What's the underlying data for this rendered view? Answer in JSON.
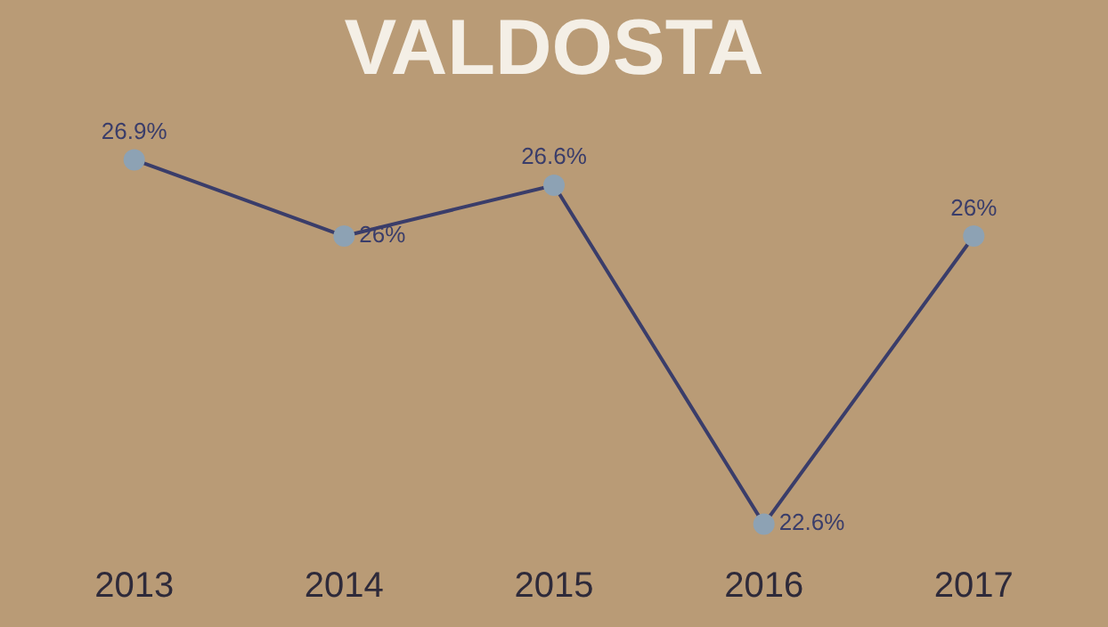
{
  "chart_data": {
    "type": "line",
    "title": "VALDOSTA",
    "categories": [
      "2013",
      "2014",
      "2015",
      "2016",
      "2017"
    ],
    "series": [
      {
        "color": "#3a3d6a",
        "values": [
          26.9,
          26,
          26.6,
          22.6,
          26
        ],
        "value_labels": [
          "26.9%",
          "26%",
          "26.6%",
          "22.6%",
          "26%"
        ]
      }
    ],
    "marker": "circle",
    "line_style": "solid",
    "grid": false,
    "legend": false,
    "tick_labels": "x"
  }
}
